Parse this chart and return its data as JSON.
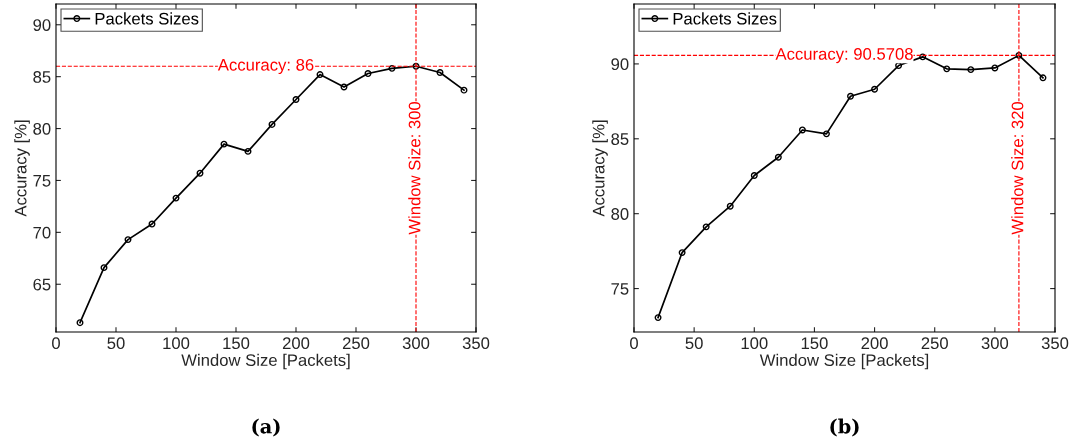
{
  "chart_data": [
    {
      "type": "line",
      "xlabel": "Window Size [Packets]",
      "ylabel": "Accuracy [%]",
      "annotations": [
        "(a)"
      ],
      "x": [
        20,
        40,
        60,
        80,
        100,
        120,
        140,
        160,
        180,
        200,
        220,
        240,
        260,
        280,
        300,
        320,
        340
      ],
      "series": [
        {
          "name": "Packets Sizes",
          "color": "#000000",
          "values": [
            61.3,
            66.6,
            69.3,
            70.8,
            73.3,
            75.7,
            78.5,
            77.8,
            80.4,
            82.8,
            85.2,
            84.0,
            85.3,
            85.8,
            86,
            85.4,
            83.7
          ]
        }
      ],
      "xlim": [
        0,
        350
      ],
      "xticks": [
        0,
        50,
        100,
        150,
        200,
        250,
        300,
        350
      ],
      "ylim": [
        60.4,
        92
      ],
      "yticks": [
        65,
        70,
        75,
        80,
        85,
        90
      ],
      "ref_lines": [
        {
          "axis": "y",
          "value": 86,
          "label": "Accuracy: 86",
          "color": "#ff0000",
          "line_style": "dashed"
        },
        {
          "axis": "x",
          "value": 300,
          "label": "Window Size: 300",
          "color": "#ff0000",
          "line_style": "dashed"
        }
      ],
      "legend": "top left",
      "marker": "circle",
      "line_style": "solid",
      "grid": false
    },
    {
      "type": "line",
      "xlabel": "Window Size [Packets]",
      "ylabel": "Accuracy [%]",
      "annotations": [
        "(b)"
      ],
      "x": [
        20,
        40,
        60,
        80,
        100,
        120,
        140,
        160,
        180,
        200,
        220,
        240,
        260,
        280,
        300,
        320,
        340
      ],
      "series": [
        {
          "name": "Packets Sizes",
          "color": "#000000",
          "values": [
            73.06,
            77.4,
            79.12,
            80.5,
            82.55,
            83.77,
            85.59,
            85.33,
            87.84,
            88.31,
            89.89,
            90.47,
            89.67,
            89.62,
            89.73,
            90.5708,
            89.07
          ]
        }
      ],
      "xlim": [
        0,
        350
      ],
      "xticks": [
        0,
        50,
        100,
        150,
        200,
        250,
        300,
        350
      ],
      "ylim": [
        72.1,
        94
      ],
      "yticks": [
        75,
        80,
        85,
        90
      ],
      "ref_lines": [
        {
          "axis": "y",
          "value": 90.5708,
          "label": "Accuracy: 90.5708",
          "color": "#ff0000",
          "line_style": "dashed"
        },
        {
          "axis": "x",
          "value": 320,
          "label": "Window Size: 320",
          "color": "#ff0000",
          "line_style": "dashed"
        }
      ],
      "legend": "top left",
      "marker": "circle",
      "line_style": "solid",
      "grid": false
    }
  ]
}
